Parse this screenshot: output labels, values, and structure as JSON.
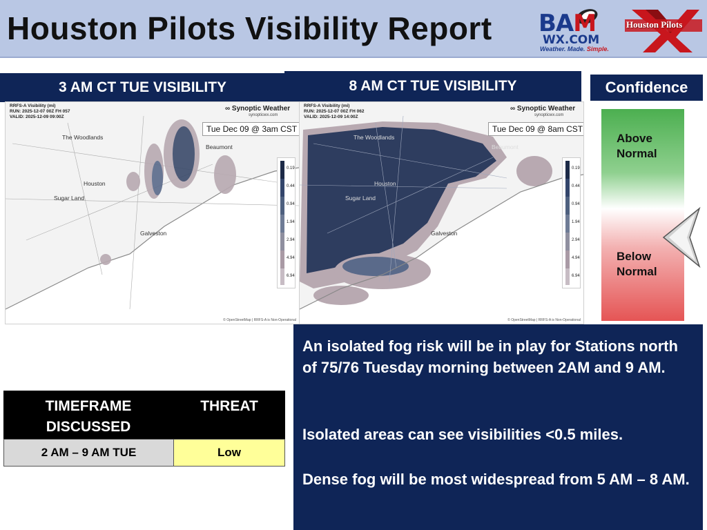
{
  "header": {
    "title": "Houston Pilots Visibility Report"
  },
  "logos": {
    "bam_big_left": "BA",
    "bam_big_right": "M",
    "bam_wx": "WX.COM",
    "bam_tag_left": "Weather. Made. ",
    "bam_tag_right": "Simple.",
    "houston_pilots": "Houston Pilots"
  },
  "panels": {
    "left_title": "3 AM CT TUE VISIBILITY",
    "right_title": "8 AM CT TUE VISIBILITY",
    "confidence_title": "Confidence"
  },
  "map_left": {
    "meta1": "RRFS-A Visibility (mi)",
    "meta2": "RUN: 2025-12-07 00Z FH 057",
    "meta3": "VALID: 2025-12-09 09:00Z",
    "brand": "∞ Synoptic Weather",
    "brand_sub": "synopticwx.com",
    "stamp": "Tue Dec 09 @ 3am CST",
    "places": [
      "The Woodlands",
      "Beaumont",
      "Houston",
      "Sugar Land",
      "Galveston"
    ],
    "colorbar": [
      "0.19",
      "0.44",
      "0.94",
      "1.94",
      "2.94",
      "4.94",
      "6.94"
    ],
    "attribution": "© OpenStreetMap | RRFS-A is Non-Operational"
  },
  "map_right": {
    "meta1": "RRFS-A Visibility (mi)",
    "meta2": "RUN: 2025-12-07 00Z FH 062",
    "meta3": "VALID: 2025-12-09 14:00Z",
    "brand": "∞ Synoptic Weather",
    "brand_sub": "synopticwx.com",
    "stamp": "Tue Dec 09 @ 8am CST",
    "places": [
      "The Woodlands",
      "Beaumont",
      "Houston",
      "Sugar Land",
      "Galveston"
    ],
    "colorbar": [
      "0.19",
      "0.44",
      "0.94",
      "1.94",
      "2.94",
      "4.94",
      "6.94"
    ],
    "attribution": "© OpenStreetMap | RRFS-A is Non-Operational"
  },
  "confidence": {
    "above": "Above Normal",
    "below": "Below Normal",
    "level": "below-normal"
  },
  "threat_table": {
    "headers": [
      "TIMEFRAME DISCUSSED",
      "THREAT"
    ],
    "timeframe": "2 AM – 9 AM TUE",
    "threat": "Low",
    "threat_color": "#ffff99"
  },
  "summary": [
    "An isolated fog risk will be in play for Stations north of 75/76 Tuesday morning between 2AM and 9 AM.",
    "Isolated areas can see visibilities <0.5 miles.",
    "Dense fog will be most widespread from 5 AM – 8 AM."
  ],
  "colors": {
    "navy": "#0f2557",
    "header_bg": "#b9c7e4"
  }
}
